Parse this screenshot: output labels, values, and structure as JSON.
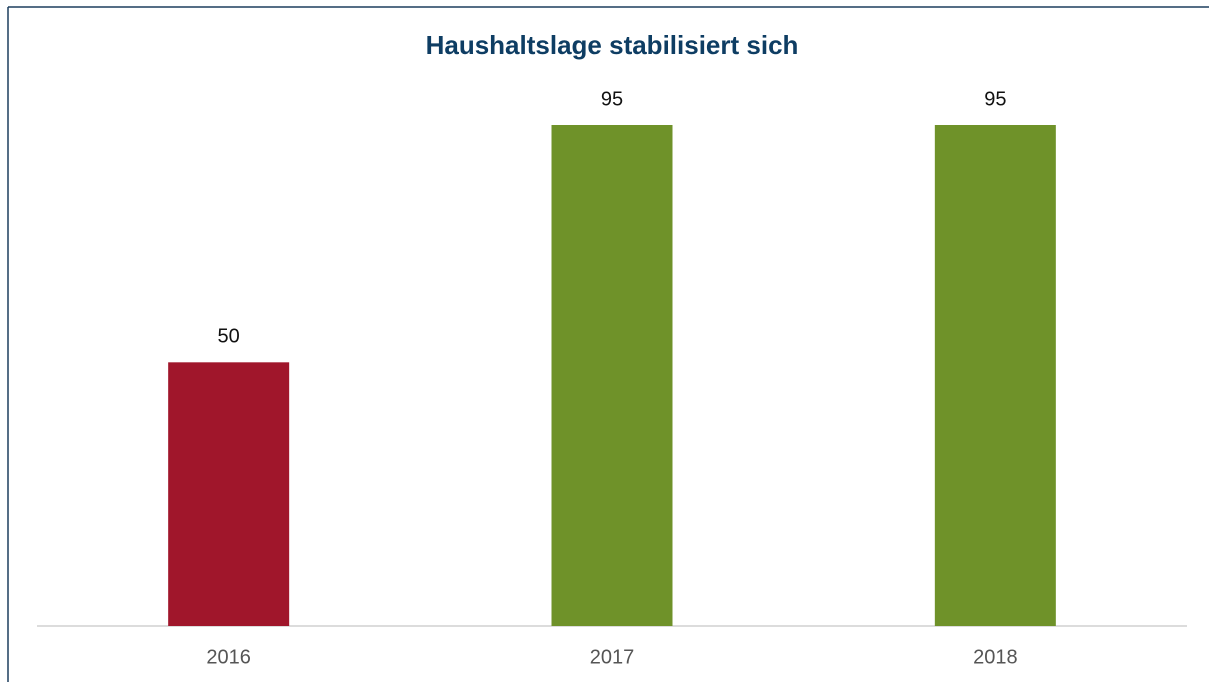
{
  "chart_data": {
    "type": "bar",
    "title": "Haushaltslage stabilisiert sich",
    "categories": [
      "2016",
      "2017",
      "2018"
    ],
    "values": [
      50,
      95,
      95
    ],
    "colors": [
      "#a0162b",
      "#6f9229",
      "#6f9229"
    ]
  }
}
